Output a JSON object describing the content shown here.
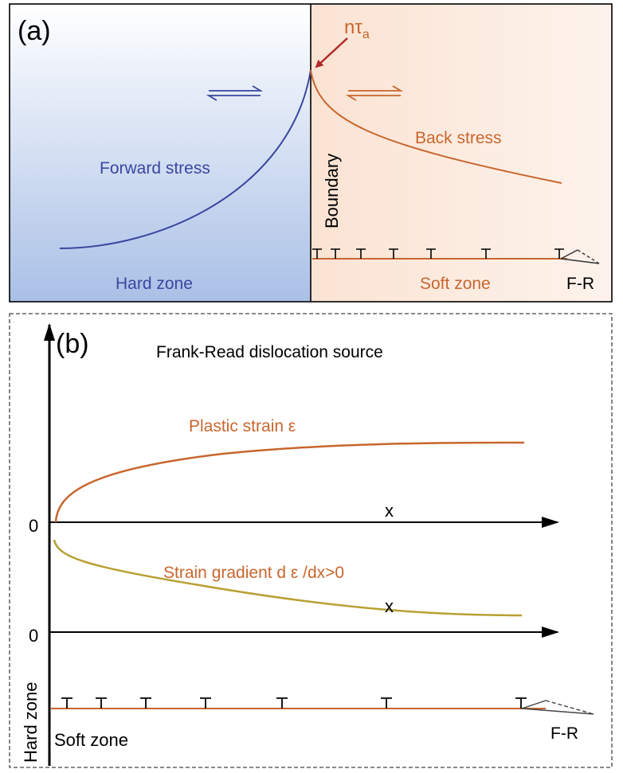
{
  "panel_a": {
    "label": "(a)",
    "peak_label": "nτ",
    "peak_label_sub": "a",
    "forward_stress": "Forward stress",
    "back_stress": "Back stress",
    "boundary": "Boundary",
    "hard_zone": "Hard zone",
    "soft_zone": "Soft zone",
    "fr": "F-R",
    "colors": {
      "blue": "#3a46a0",
      "orange": "#c8662e",
      "arrow": "#b0282a"
    }
  },
  "panel_b": {
    "label": "(b)",
    "title": "Frank-Read dislocation source",
    "plastic_strain": "Plastic strain ε",
    "strain_gradient": "Strain gradient d ε /dx>0",
    "x_upper": "x",
    "x_lower": "x",
    "zero_upper": "0",
    "zero_lower": "0",
    "hard_zone": "Hard zone",
    "soft_zone": "Soft zone",
    "fr": "F-R",
    "colors": {
      "orange": "#c8662e",
      "gold": "#b8a033"
    }
  }
}
